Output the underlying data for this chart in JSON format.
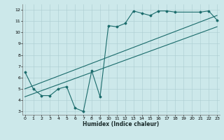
{
  "bg_color": "#cce8ea",
  "grid_color": "#aacdd0",
  "line_color": "#1a6b6b",
  "jagged_x": [
    0,
    1,
    2,
    3,
    4,
    5,
    6,
    7,
    8,
    9,
    10,
    11,
    12,
    13,
    14,
    15,
    16,
    17,
    18,
    21,
    22,
    23
  ],
  "jagged_y": [
    6.5,
    5.0,
    4.4,
    4.4,
    5.0,
    5.2,
    3.3,
    3.0,
    6.6,
    4.3,
    10.6,
    10.5,
    10.8,
    11.9,
    11.7,
    11.5,
    11.9,
    11.9,
    11.8,
    11.8,
    11.9,
    11.1
  ],
  "line1_x": [
    0,
    23
  ],
  "line1_y": [
    5.0,
    11.5
  ],
  "line2_x": [
    0,
    23
  ],
  "line2_y": [
    4.3,
    10.5
  ],
  "xlim": [
    -0.3,
    23.3
  ],
  "ylim": [
    2.7,
    12.5
  ],
  "xticks": [
    0,
    1,
    2,
    3,
    4,
    5,
    6,
    7,
    8,
    9,
    10,
    11,
    12,
    13,
    14,
    15,
    16,
    17,
    18,
    19,
    20,
    21,
    22,
    23
  ],
  "yticks": [
    3,
    4,
    5,
    6,
    7,
    8,
    9,
    10,
    11,
    12
  ],
  "xlabel": "Humidex (Indice chaleur)"
}
